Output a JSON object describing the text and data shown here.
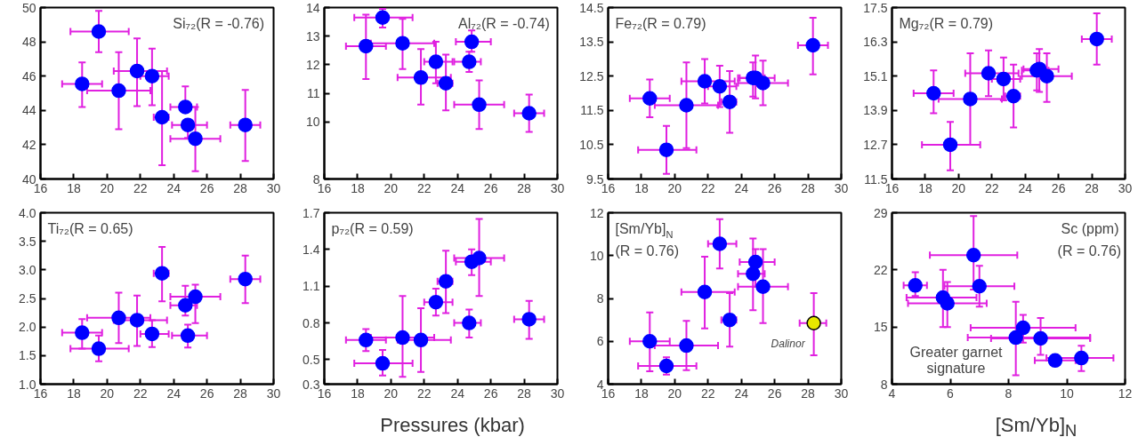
{
  "chart_data": [
    {
      "type": "scatter",
      "title": "Si₇₂(R = -0.76)",
      "xlim": [
        16,
        30
      ],
      "xticks": [
        16,
        18,
        20,
        22,
        24,
        26,
        28,
        30
      ],
      "ylim": [
        40,
        50
      ],
      "yticks": [
        40,
        42,
        44,
        46,
        48,
        50
      ],
      "marker": "circle",
      "grid": false,
      "series": [
        {
          "color": "#0000ff",
          "x": [
            18.5,
            19.5,
            20.7,
            21.8,
            22.7,
            23.3,
            24.7,
            24.85,
            25.3,
            28.3
          ],
          "values": [
            45.55,
            48.6,
            45.15,
            46.3,
            46.0,
            43.6,
            44.2,
            43.15,
            42.35,
            43.15
          ],
          "errors": [
            [
              44.2,
              46.8
            ],
            [
              47.4,
              49.8
            ],
            [
              42.9,
              47.4
            ],
            [
              44.25,
              48.2
            ],
            [
              44.3,
              47.6
            ],
            [
              40.8,
              46.3
            ],
            [
              44.2,
              45.4
            ],
            [
              42.4,
              43.15
            ],
            [
              40.45,
              44.2
            ],
            [
              41.05,
              45.2
            ]
          ],
          "xerrors": [
            [
              17.3,
              19.7
            ],
            [
              17.8,
              21.3
            ],
            [
              18.8,
              22.6
            ],
            [
              20.4,
              23.6
            ],
            [
              22.0,
              23.7
            ],
            [
              22.8,
              23.7
            ],
            [
              23.8,
              25.4
            ],
            [
              23.9,
              26.0
            ],
            [
              23.8,
              26.8
            ],
            [
              27.4,
              29.2
            ]
          ]
        }
      ]
    },
    {
      "type": "scatter",
      "title": "Al₇₂(R = -0.74)",
      "xlim": [
        16,
        30
      ],
      "xticks": [
        16,
        18,
        20,
        22,
        24,
        26,
        28,
        30
      ],
      "ylim": [
        8,
        14
      ],
      "yticks": [
        8,
        10,
        11,
        12,
        13,
        14
      ],
      "marker": "circle",
      "grid": false,
      "series": [
        {
          "color": "#0000ff",
          "x": [
            18.5,
            19.5,
            20.7,
            21.8,
            22.7,
            23.3,
            24.7,
            24.85,
            25.3,
            28.3
          ],
          "values": [
            12.65,
            13.65,
            12.75,
            11.55,
            12.1,
            11.35,
            12.1,
            12.8,
            10.6,
            10.3
          ],
          "errors": [
            [
              11.5,
              13.75
            ],
            [
              13.3,
              13.95
            ],
            [
              11.85,
              13.6
            ],
            [
              10.6,
              12.55
            ],
            [
              11.35,
              12.8
            ],
            [
              10.4,
              12.35
            ],
            [
              11.75,
              12.45
            ],
            [
              12.45,
              13.2
            ],
            [
              9.75,
              11.45
            ],
            [
              9.65,
              10.95
            ]
          ],
          "xerrors": [
            [
              17.3,
              19.7
            ],
            [
              17.8,
              21.3
            ],
            [
              18.8,
              22.6
            ],
            [
              20.4,
              23.6
            ],
            [
              22.0,
              23.7
            ],
            [
              22.8,
              23.7
            ],
            [
              23.8,
              25.4
            ],
            [
              23.9,
              26.0
            ],
            [
              23.8,
              26.8
            ],
            [
              27.4,
              29.2
            ]
          ]
        }
      ]
    },
    {
      "type": "scatter",
      "title": "Fe₇₂(R = 0.79)",
      "xlim": [
        16,
        30
      ],
      "xticks": [
        16,
        18,
        20,
        22,
        24,
        26,
        28,
        30
      ],
      "ylim": [
        9.5,
        14.5
      ],
      "yticks": [
        9.5,
        10.5,
        11.5,
        12.5,
        13.5,
        14.5
      ],
      "marker": "circle",
      "grid": false,
      "series": [
        {
          "color": "#0000ff",
          "x": [
            18.5,
            19.5,
            20.7,
            21.8,
            22.7,
            23.3,
            24.7,
            24.85,
            25.3,
            28.3
          ],
          "values": [
            11.85,
            10.35,
            11.65,
            12.35,
            12.2,
            11.75,
            12.45,
            12.45,
            12.3,
            13.4
          ],
          "errors": [
            [
              11.3,
              12.4
            ],
            [
              9.65,
              11.05
            ],
            [
              10.4,
              12.9
            ],
            [
              11.7,
              13.0
            ],
            [
              11.6,
              12.8
            ],
            [
              10.85,
              12.65
            ],
            [
              11.9,
              12.9
            ],
            [
              11.85,
              13.1
            ],
            [
              11.65,
              12.95
            ],
            [
              12.55,
              14.2
            ]
          ],
          "xerrors": [
            [
              17.3,
              19.7
            ],
            [
              17.8,
              21.3
            ],
            [
              18.8,
              22.6
            ],
            [
              20.4,
              23.6
            ],
            [
              22.0,
              23.7
            ],
            [
              22.8,
              23.7
            ],
            [
              23.8,
              25.4
            ],
            [
              23.9,
              26.0
            ],
            [
              23.8,
              26.8
            ],
            [
              27.4,
              29.2
            ]
          ]
        }
      ]
    },
    {
      "type": "scatter",
      "title": "Mg₇₂(R = 0.79)",
      "xlim": [
        16,
        30
      ],
      "xticks": [
        16,
        18,
        20,
        22,
        24,
        26,
        28,
        30
      ],
      "ylim": [
        11.5,
        17.5
      ],
      "yticks": [
        11.5,
        12.7,
        13.9,
        15.1,
        16.3,
        17.5
      ],
      "marker": "circle",
      "grid": false,
      "series": [
        {
          "color": "#0000ff",
          "x": [
            18.5,
            19.5,
            20.7,
            21.8,
            22.7,
            23.3,
            24.7,
            24.85,
            25.3,
            28.3
          ],
          "values": [
            14.5,
            12.7,
            14.3,
            15.2,
            15.0,
            14.4,
            15.3,
            15.35,
            15.1,
            16.4
          ],
          "errors": [
            [
              13.8,
              15.3
            ],
            [
              11.8,
              13.5
            ],
            [
              12.7,
              15.9
            ],
            [
              14.4,
              16.0
            ],
            [
              14.25,
              15.75
            ],
            [
              13.3,
              15.5
            ],
            [
              14.6,
              15.9
            ],
            [
              14.55,
              16.05
            ],
            [
              14.2,
              15.9
            ],
            [
              15.5,
              17.3
            ]
          ],
          "xerrors": [
            [
              17.3,
              19.7
            ],
            [
              17.8,
              21.3
            ],
            [
              18.8,
              22.6
            ],
            [
              20.4,
              23.6
            ],
            [
              22.0,
              23.7
            ],
            [
              22.8,
              23.7
            ],
            [
              23.8,
              25.4
            ],
            [
              23.9,
              26.0
            ],
            [
              23.8,
              26.8
            ],
            [
              27.4,
              29.2
            ]
          ]
        }
      ]
    },
    {
      "type": "scatter",
      "title": "Ti₇₂(R = 0.65)",
      "xlim": [
        16,
        30
      ],
      "xticks": [
        16,
        18,
        20,
        22,
        24,
        26,
        28,
        30
      ],
      "ylim": [
        1.0,
        4.0
      ],
      "yticks": [
        {
          "value": 1,
          "label": "1.0"
        },
        1.5,
        {
          "value": 2,
          "label": "2.0"
        },
        2.5,
        {
          "value": 3,
          "label": "3.0"
        },
        3.5,
        {
          "value": 4,
          "label": "4.0"
        }
      ],
      "marker": "circle",
      "grid": false,
      "series": [
        {
          "color": "#0000ff",
          "x": [
            18.5,
            19.5,
            20.7,
            21.8,
            22.7,
            23.3,
            24.7,
            24.85,
            25.3,
            28.3
          ],
          "values": [
            1.9,
            1.62,
            2.16,
            2.12,
            1.88,
            2.94,
            2.38,
            1.85,
            2.53,
            2.84
          ],
          "errors": [
            [
              1.62,
              2.14
            ],
            [
              1.4,
              1.85
            ],
            [
              1.72,
              2.6
            ],
            [
              1.67,
              2.55
            ],
            [
              1.65,
              2.12
            ],
            [
              2.45,
              3.4
            ],
            [
              2.2,
              2.72
            ],
            [
              1.64,
              2.04
            ],
            [
              2.07,
              2.74
            ],
            [
              2.42,
              3.25
            ]
          ],
          "xerrors": [
            [
              17.3,
              19.7
            ],
            [
              17.8,
              21.3
            ],
            [
              18.8,
              22.6
            ],
            [
              20.4,
              23.6
            ],
            [
              22.0,
              23.7
            ],
            [
              22.8,
              23.7
            ],
            [
              23.8,
              25.4
            ],
            [
              23.9,
              26.0
            ],
            [
              23.8,
              26.8
            ],
            [
              27.4,
              29.2
            ]
          ]
        }
      ]
    },
    {
      "type": "scatter",
      "title": "p₇₂(R = 0.59)",
      "xlabel": "Pressures (kbar)",
      "xlim": [
        16,
        30
      ],
      "xticks": [
        16,
        18,
        20,
        22,
        24,
        26,
        28,
        30
      ],
      "ylim": [
        0.3,
        1.7
      ],
      "yticks": [
        0.3,
        0.5,
        0.8,
        1.1,
        1.4,
        1.7
      ],
      "marker": "circle",
      "grid": false,
      "series": [
        {
          "color": "#0000ff",
          "x": [
            18.5,
            19.5,
            20.7,
            21.8,
            22.7,
            23.3,
            24.7,
            24.85,
            25.3,
            28.3
          ],
          "values": [
            0.66,
            0.47,
            0.68,
            0.66,
            0.97,
            1.14,
            0.8,
            1.3,
            1.33,
            0.83
          ],
          "errors": [
            [
              0.57,
              0.75
            ],
            [
              0.37,
              0.58
            ],
            [
              0.36,
              1.02
            ],
            [
              0.4,
              0.92
            ],
            [
              0.86,
              1.08
            ],
            [
              0.88,
              1.39
            ],
            [
              0.68,
              0.91
            ],
            [
              1.19,
              1.4
            ],
            [
              1.02,
              1.65
            ],
            [
              0.67,
              0.98
            ]
          ],
          "xerrors": [
            [
              17.3,
              19.7
            ],
            [
              17.8,
              21.3
            ],
            [
              18.8,
              22.6
            ],
            [
              20.4,
              23.6
            ],
            [
              22.0,
              23.7
            ],
            [
              22.8,
              23.7
            ],
            [
              23.8,
              25.4
            ],
            [
              23.9,
              26.0
            ],
            [
              23.8,
              26.8
            ],
            [
              27.4,
              29.2
            ]
          ]
        }
      ]
    },
    {
      "type": "scatter",
      "title": "[Sm/Yb]$_{N}$",
      "subtitle": "(R = 0.76)",
      "xlim": [
        16,
        30
      ],
      "xticks": [
        16,
        18,
        20,
        22,
        24,
        26,
        28,
        30
      ],
      "ylim": [
        4,
        12
      ],
      "yticks": [
        4,
        6,
        8,
        10,
        12
      ],
      "marker": "circle",
      "grid": false,
      "series": [
        {
          "color": "#0000ff",
          "x": [
            18.5,
            19.5,
            20.7,
            21.8,
            22.7,
            23.3,
            24.7,
            24.85,
            25.3
          ],
          "values": [
            6.0,
            4.85,
            5.8,
            8.3,
            10.55,
            7.0,
            9.15,
            9.7,
            8.55
          ],
          "errors": [
            [
              4.6,
              7.35
            ],
            [
              4.45,
              5.25
            ],
            [
              4.65,
              6.95
            ],
            [
              6.6,
              9.95
            ],
            [
              9.4,
              11.7
            ],
            [
              5.75,
              8.25
            ],
            [
              7.45,
              10.8
            ],
            [
              8.55,
              10.3
            ],
            [
              6.85,
              10.3
            ]
          ],
          "xerrors": [
            [
              17.3,
              19.7
            ],
            [
              17.8,
              21.3
            ],
            [
              18.8,
              22.6
            ],
            [
              20.4,
              23.6
            ],
            [
              22.0,
              23.7
            ],
            [
              22.8,
              23.7
            ],
            [
              23.8,
              25.4
            ],
            [
              23.9,
              26.0
            ],
            [
              23.8,
              26.8
            ]
          ]
        },
        {
          "name": "Dalinor",
          "color": "#e8e800",
          "x": [
            28.35
          ],
          "values": [
            6.85
          ],
          "errors": [
            [
              5.35,
              8.25
            ]
          ],
          "xerrors": [
            [
              27.5,
              29.1
            ]
          ]
        }
      ]
    },
    {
      "type": "scatter",
      "title": "Sc (ppm)",
      "subtitle": "(R = 0.76)",
      "xlabel": "[Sm/Yb]$_{N}$",
      "xlim": [
        4,
        12
      ],
      "xticks": [
        4,
        6,
        8,
        10,
        12
      ],
      "ylim": [
        8,
        29
      ],
      "yticks": [
        8,
        15,
        22,
        29
      ],
      "marker": "circle",
      "grid": false,
      "annotations": [
        "Greater garnet signature"
      ],
      "series": [
        {
          "color": "#0000ff",
          "x": [
            4.8,
            5.75,
            5.9,
            6.8,
            7.0,
            8.25,
            8.5,
            9.1,
            9.6,
            10.5
          ],
          "values": [
            20.1,
            18.6,
            17.9,
            23.8,
            20.0,
            13.7,
            14.9,
            13.6,
            10.9,
            11.2
          ],
          "errors": [
            [
              18.8,
              21.7
            ],
            [
              15.0,
              22.0
            ],
            [
              15.0,
              20.5
            ],
            [
              19.6,
              28.6
            ],
            [
              17.5,
              22.5
            ],
            [
              9.1,
              18.1
            ],
            [
              13.1,
              16.5
            ],
            [
              11.6,
              16.1
            ],
            null,
            [
              9.6,
              12.7
            ]
          ],
          "xerrors": [
            [
              4.4,
              5.2
            ],
            [
              4.5,
              6.9
            ],
            [
              4.55,
              7.25
            ],
            [
              5.3,
              8.3
            ],
            [
              5.8,
              8.2
            ],
            [
              6.6,
              10.8
            ],
            [
              6.7,
              10.3
            ],
            [
              7.4,
              10.8
            ],
            [
              8.9,
              10.3
            ],
            [
              9.3,
              11.6
            ]
          ]
        }
      ]
    }
  ]
}
